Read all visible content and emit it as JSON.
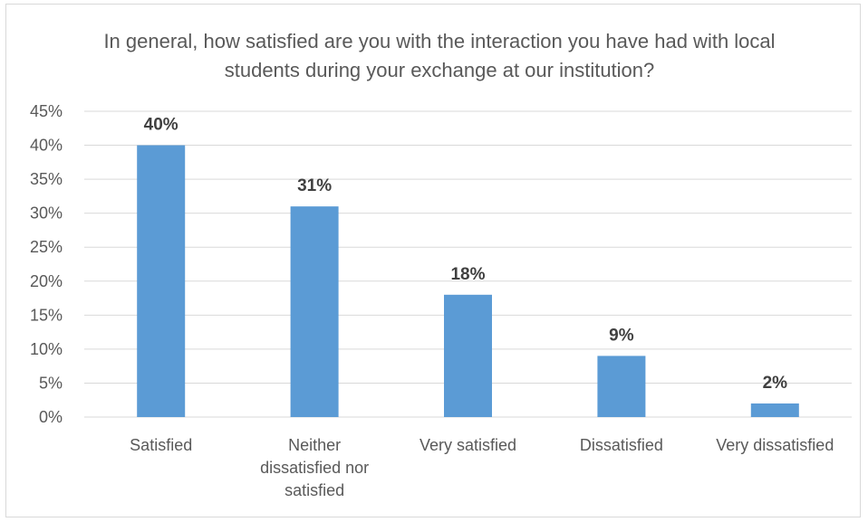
{
  "chart_data": {
    "type": "bar",
    "title": "In general, how satisfied are you with the interaction you have had with local students during your exchange at our institution?",
    "categories": [
      "Satisfied",
      "Neither dissatisfied nor satisfied",
      "Very satisfied",
      "Dissatisfied",
      "Very dissatisfied"
    ],
    "category_lines": [
      [
        "Satisfied"
      ],
      [
        "Neither",
        "dissatisfied nor",
        "satisfied"
      ],
      [
        "Very satisfied"
      ],
      [
        "Dissatisfied"
      ],
      [
        "Very dissatisfied"
      ]
    ],
    "values": [
      40,
      31,
      18,
      9,
      2
    ],
    "data_labels": [
      "40%",
      "31%",
      "18%",
      "9%",
      "2%"
    ],
    "ylim": [
      0,
      45
    ],
    "yticks": [
      0,
      5,
      10,
      15,
      20,
      25,
      30,
      35,
      40,
      45
    ],
    "ytick_labels": [
      "0%",
      "5%",
      "10%",
      "15%",
      "20%",
      "25%",
      "30%",
      "35%",
      "40%",
      "45%"
    ],
    "xlabel": "",
    "ylabel": "",
    "grid": true,
    "legend": "none",
    "bar_color": "#5B9BD5",
    "grid_color": "#d9d9d9",
    "text_color": "#595959"
  }
}
